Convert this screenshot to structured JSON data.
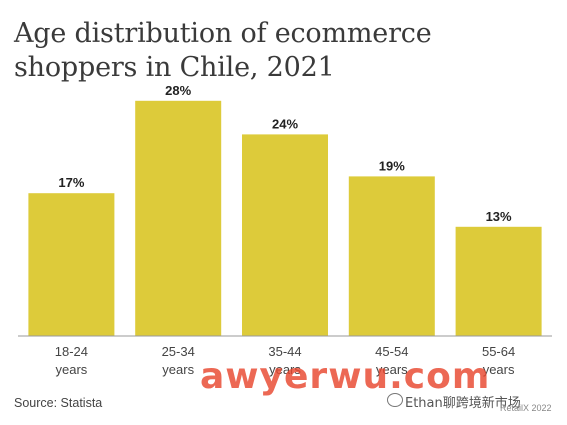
{
  "title": "Age distribution of ecommerce shoppers in Chile, 2021",
  "source": "Source: Statista",
  "watermark": {
    "main": "awyerwu.com",
    "wechat": "Ethan聊跨境新市场",
    "retail": "RetailX 2022"
  },
  "colors": {
    "bar": "#ddcb3a",
    "axis": "#999999",
    "text": "#222222"
  },
  "chart_data": {
    "type": "bar",
    "title": "Age distribution of ecommerce shoppers in Chile, 2021",
    "categories": [
      "18-24 years",
      "25-34 years",
      "35-44 years",
      "45-54 years",
      "55-64 years"
    ],
    "category_lines": [
      [
        "18-24",
        "years"
      ],
      [
        "25-34",
        "years"
      ],
      [
        "35-44",
        "years"
      ],
      [
        "45-54",
        "years"
      ],
      [
        "55-64",
        "years"
      ]
    ],
    "values": [
      17,
      28,
      24,
      19,
      13
    ],
    "value_labels": [
      "17%",
      "28%",
      "24%",
      "19%",
      "13%"
    ],
    "unit": "%",
    "ylim": [
      0,
      30
    ],
    "grid": false,
    "legend": "none"
  }
}
